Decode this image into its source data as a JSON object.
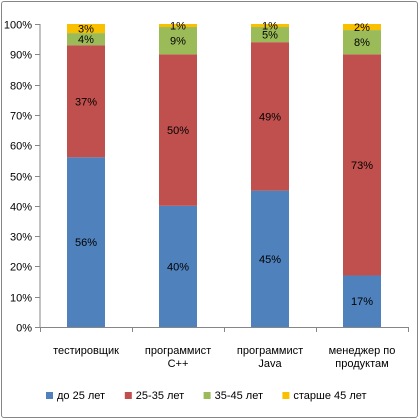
{
  "chart_data": {
    "type": "bar",
    "stacked": true,
    "percent_stacked": true,
    "categories": [
      [
        "тестировщик"
      ],
      [
        "программист",
        "C++"
      ],
      [
        "программист",
        "Java"
      ],
      [
        "менеджер по",
        "продуктам"
      ]
    ],
    "series": [
      {
        "name": "до 25 лет",
        "color": "#4F81BD",
        "values": [
          56,
          40,
          45,
          17
        ]
      },
      {
        "name": "25-35 лет",
        "color": "#C0504D",
        "values": [
          37,
          50,
          49,
          73
        ]
      },
      {
        "name": "35-45 лет",
        "color": "#9BBB59",
        "values": [
          4,
          9,
          5,
          8
        ]
      },
      {
        "name": "старше 45 лет",
        "color": "#F9C000",
        "values": [
          3,
          1,
          1,
          2
        ]
      }
    ],
    "ylim": [
      0,
      100
    ],
    "yticks": [
      "0%",
      "10%",
      "20%",
      "30%",
      "40%",
      "50%",
      "60%",
      "70%",
      "80%",
      "90%",
      "100%"
    ],
    "grid": false,
    "legend_position": "bottom"
  }
}
